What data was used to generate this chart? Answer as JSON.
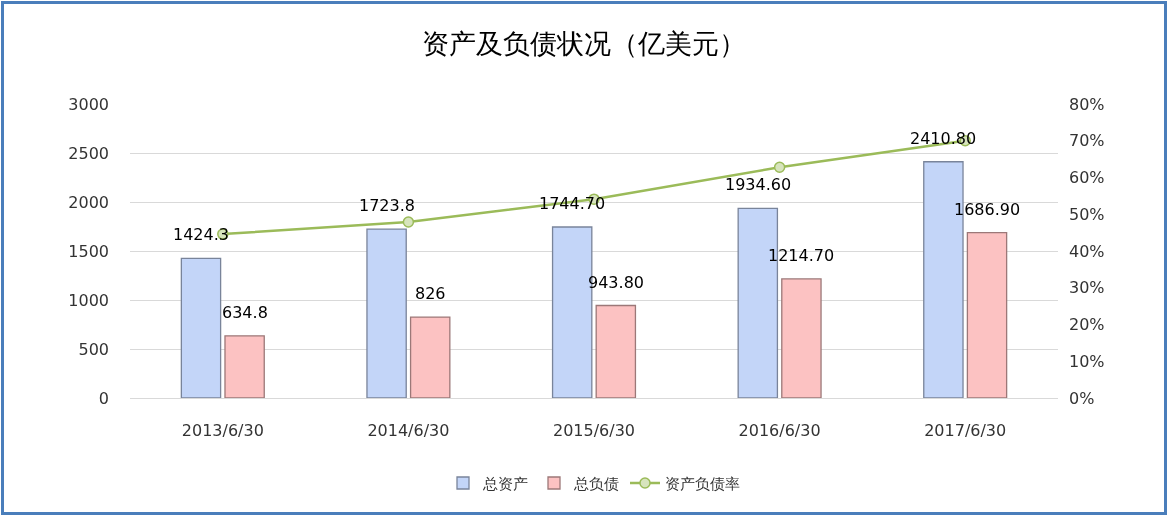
{
  "chart_data": {
    "type": "bar",
    "title": "资产及负债状况（亿美元）",
    "categories": [
      "2013/6/30",
      "2014/6/30",
      "2015/6/30",
      "2016/6/30",
      "2017/6/30"
    ],
    "series": [
      {
        "name": "总资产",
        "color": "#c3d5f8",
        "values": [
          1424.3,
          1723.8,
          1744.7,
          1934.6,
          2410.8
        ],
        "value_labels": [
          "1424.3",
          "1723.8",
          "1744.70",
          "1934.60",
          "2410.80"
        ]
      },
      {
        "name": "总负债",
        "color": "#fcc2c2",
        "values": [
          634.8,
          826,
          943.8,
          1214.7,
          1686.9
        ],
        "value_labels": [
          "634.8",
          "826",
          "943.80",
          "1214.70",
          "1686.90"
        ]
      },
      {
        "name": "资产负债率",
        "type": "line",
        "axis": "y2",
        "color": "#9bbb59",
        "values": [
          44.6,
          47.9,
          54.1,
          62.8,
          70.0
        ]
      }
    ],
    "ylim": [
      0,
      3000
    ],
    "yticks": [
      0,
      500,
      1000,
      1500,
      2000,
      2500,
      3000
    ],
    "y2lim": [
      0,
      80
    ],
    "y2ticks": [
      {
        "value": 0,
        "label": "0%"
      },
      {
        "value": 10,
        "label": "10%"
      },
      {
        "value": 20,
        "label": "20%"
      },
      {
        "value": 30,
        "label": "30%"
      },
      {
        "value": 40,
        "label": "40%"
      },
      {
        "value": 50,
        "label": "50%"
      },
      {
        "value": 60,
        "label": "60%"
      },
      {
        "value": 70,
        "label": "70%"
      },
      {
        "value": 80,
        "label": "80%"
      }
    ],
    "grid": "y",
    "legend": "bottom",
    "marker": "circle",
    "line_style": "solid"
  }
}
